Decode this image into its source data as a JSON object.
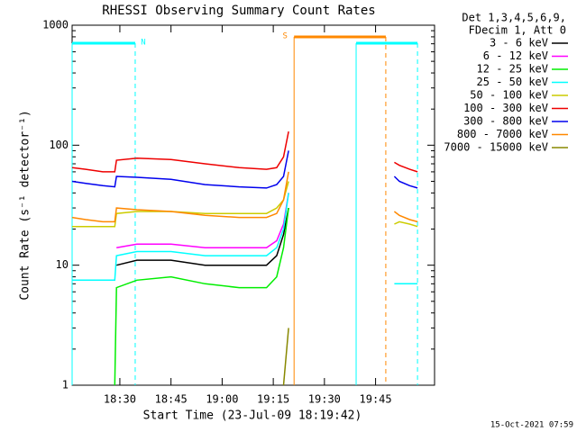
{
  "chart_data": {
    "type": "line",
    "title": "RHESSI Observing Summary Count Rates",
    "xlabel": "Start Time (23-Jul-09 18:19:42)",
    "ylabel": "Count Rate (s⁻¹ detector⁻¹)",
    "legend_title": [
      "Det 1,3,4,5,6,9,",
      "FDecim 1, Att 0"
    ],
    "footer": "15-Oct-2021 07:59",
    "log_y": true,
    "xlim": [
      16,
      122.3
    ],
    "ylim": [
      1,
      1000
    ],
    "xticks": [
      {
        "value": 30,
        "label": "18:30"
      },
      {
        "value": 45,
        "label": "18:45"
      },
      {
        "value": 60,
        "label": "19:00"
      },
      {
        "value": 75,
        "label": "19:15"
      },
      {
        "value": 90,
        "label": "19:30"
      },
      {
        "value": 105,
        "label": "19:45"
      }
    ],
    "yticks": [
      1,
      10,
      100,
      1000
    ],
    "x": [
      16,
      20,
      25,
      28.5,
      29,
      35,
      45,
      55,
      65,
      73,
      76,
      78,
      79.5,
      95,
      110.5,
      112,
      115,
      117.3
    ],
    "series": [
      {
        "name": "3 - 6 keV",
        "color": "#000000",
        "values": [
          null,
          null,
          null,
          null,
          10,
          11,
          11,
          10,
          10,
          10,
          12,
          18,
          30,
          null,
          null,
          null,
          null,
          null
        ]
      },
      {
        "name": "6 - 12 keV",
        "color": "#ff00ff",
        "values": [
          null,
          null,
          null,
          null,
          14,
          15,
          15,
          14,
          14,
          14,
          16,
          22,
          40,
          null,
          null,
          null,
          null,
          null
        ]
      },
      {
        "name": "12 - 25 keV",
        "color": "#00ee00",
        "values": [
          null,
          null,
          null,
          1,
          6.5,
          7.5,
          8,
          7,
          6.5,
          6.5,
          8,
          14,
          30,
          null,
          null,
          null,
          null,
          null
        ]
      },
      {
        "name": "25 - 50 keV",
        "color": "#00ffff",
        "values": [
          7.5,
          7.5,
          7.5,
          7.5,
          12,
          13,
          13,
          12,
          12,
          12,
          14,
          20,
          40,
          null,
          7,
          7,
          7,
          7
        ]
      },
      {
        "name": "50 - 100 keV",
        "color": "#cccc00",
        "values": [
          21,
          21,
          21,
          21,
          27,
          28,
          28,
          27,
          27,
          27,
          30,
          35,
          50,
          null,
          22,
          23,
          22,
          21
        ]
      },
      {
        "name": "100 - 300 keV",
        "color": "#ee0000",
        "values": [
          65,
          63,
          60,
          60,
          75,
          78,
          76,
          70,
          65,
          63,
          65,
          80,
          130,
          null,
          72,
          68,
          63,
          60
        ]
      },
      {
        "name": "300 - 800 keV",
        "color": "#0000ee",
        "values": [
          50,
          48,
          46,
          45,
          55,
          54,
          52,
          47,
          45,
          44,
          47,
          55,
          90,
          null,
          55,
          50,
          46,
          44
        ]
      },
      {
        "name": "800 - 7000 keV",
        "color": "#ff8800",
        "values": [
          25,
          24,
          23,
          23,
          30,
          29,
          28,
          26,
          25,
          25,
          27,
          35,
          60,
          null,
          28,
          26,
          24,
          23
        ]
      },
      {
        "name": "7000 - 15000 keV",
        "color": "#888800",
        "values": [
          null,
          null,
          null,
          null,
          null,
          null,
          null,
          null,
          null,
          null,
          null,
          1,
          3,
          null,
          null,
          null,
          null,
          null
        ]
      }
    ],
    "flags": [
      {
        "label": "N",
        "start": 16,
        "end": 34.5,
        "color": "#00ffff"
      },
      {
        "label": "S",
        "start": 81.1,
        "end": 108,
        "color": "#ff8800"
      },
      {
        "start": 99.3,
        "end": 117.3,
        "color": "#00ffff"
      }
    ]
  }
}
